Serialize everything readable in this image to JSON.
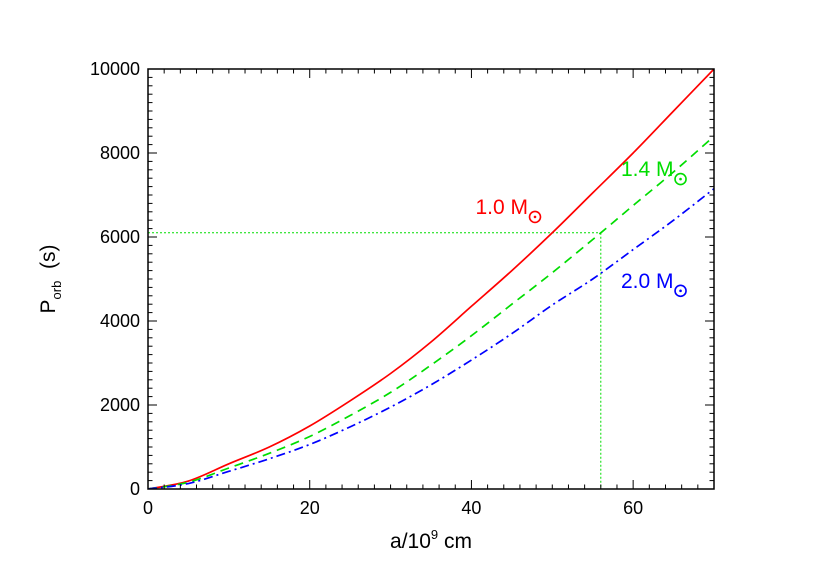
{
  "chart_data": {
    "type": "line",
    "xlabel": {
      "base": "a/10",
      "sup": "9",
      "rest": " cm"
    },
    "ylabel": {
      "base": "P",
      "sub": "orb",
      "rest": "  (s)"
    },
    "xlim": [
      0,
      70
    ],
    "ylim": [
      0,
      10000
    ],
    "xticks": [
      0,
      20,
      40,
      60
    ],
    "yticks": [
      0,
      2000,
      4000,
      6000,
      8000,
      10000
    ],
    "x_minor_step": 2,
    "y_minor_step": 200,
    "grid": false,
    "series": [
      {
        "label": "1.0 M",
        "color": "#ff0000",
        "dash": "solid",
        "label_at": [
          40.5,
          6550
        ],
        "points": [
          [
            0,
            0
          ],
          [
            5,
            190
          ],
          [
            10,
            600
          ],
          [
            15,
            1000
          ],
          [
            20,
            1500
          ],
          [
            25,
            2100
          ],
          [
            30,
            2750
          ],
          [
            35,
            3500
          ],
          [
            40,
            4350
          ],
          [
            45,
            5200
          ],
          [
            50,
            6100
          ],
          [
            55,
            7050
          ],
          [
            60,
            8000
          ],
          [
            65,
            9000
          ],
          [
            70,
            10000
          ]
        ]
      },
      {
        "label": "1.4 M",
        "color": "#00dd00",
        "dash": "dashed",
        "label_at": [
          58.5,
          7450
        ],
        "points": [
          [
            0,
            0
          ],
          [
            5,
            160
          ],
          [
            10,
            500
          ],
          [
            15,
            850
          ],
          [
            20,
            1250
          ],
          [
            25,
            1750
          ],
          [
            30,
            2300
          ],
          [
            35,
            2950
          ],
          [
            40,
            3650
          ],
          [
            45,
            4400
          ],
          [
            50,
            5150
          ],
          [
            56,
            6100
          ],
          [
            60,
            6750
          ],
          [
            65,
            7550
          ],
          [
            70,
            8400
          ]
        ]
      },
      {
        "label": "2.0 M",
        "color": "#0000ff",
        "dash": "dashdot",
        "label_at": [
          58.5,
          4790
        ],
        "points": [
          [
            0,
            0
          ],
          [
            5,
            130
          ],
          [
            10,
            420
          ],
          [
            15,
            720
          ],
          [
            20,
            1060
          ],
          [
            25,
            1480
          ],
          [
            30,
            1950
          ],
          [
            35,
            2480
          ],
          [
            40,
            3070
          ],
          [
            45,
            3700
          ],
          [
            50,
            4380
          ],
          [
            55,
            5000
          ],
          [
            60,
            5700
          ],
          [
            65,
            6400
          ],
          [
            70,
            7150
          ]
        ]
      }
    ],
    "reference_lines": {
      "color": "#00dd00",
      "x": 56,
      "y": 6100
    }
  }
}
